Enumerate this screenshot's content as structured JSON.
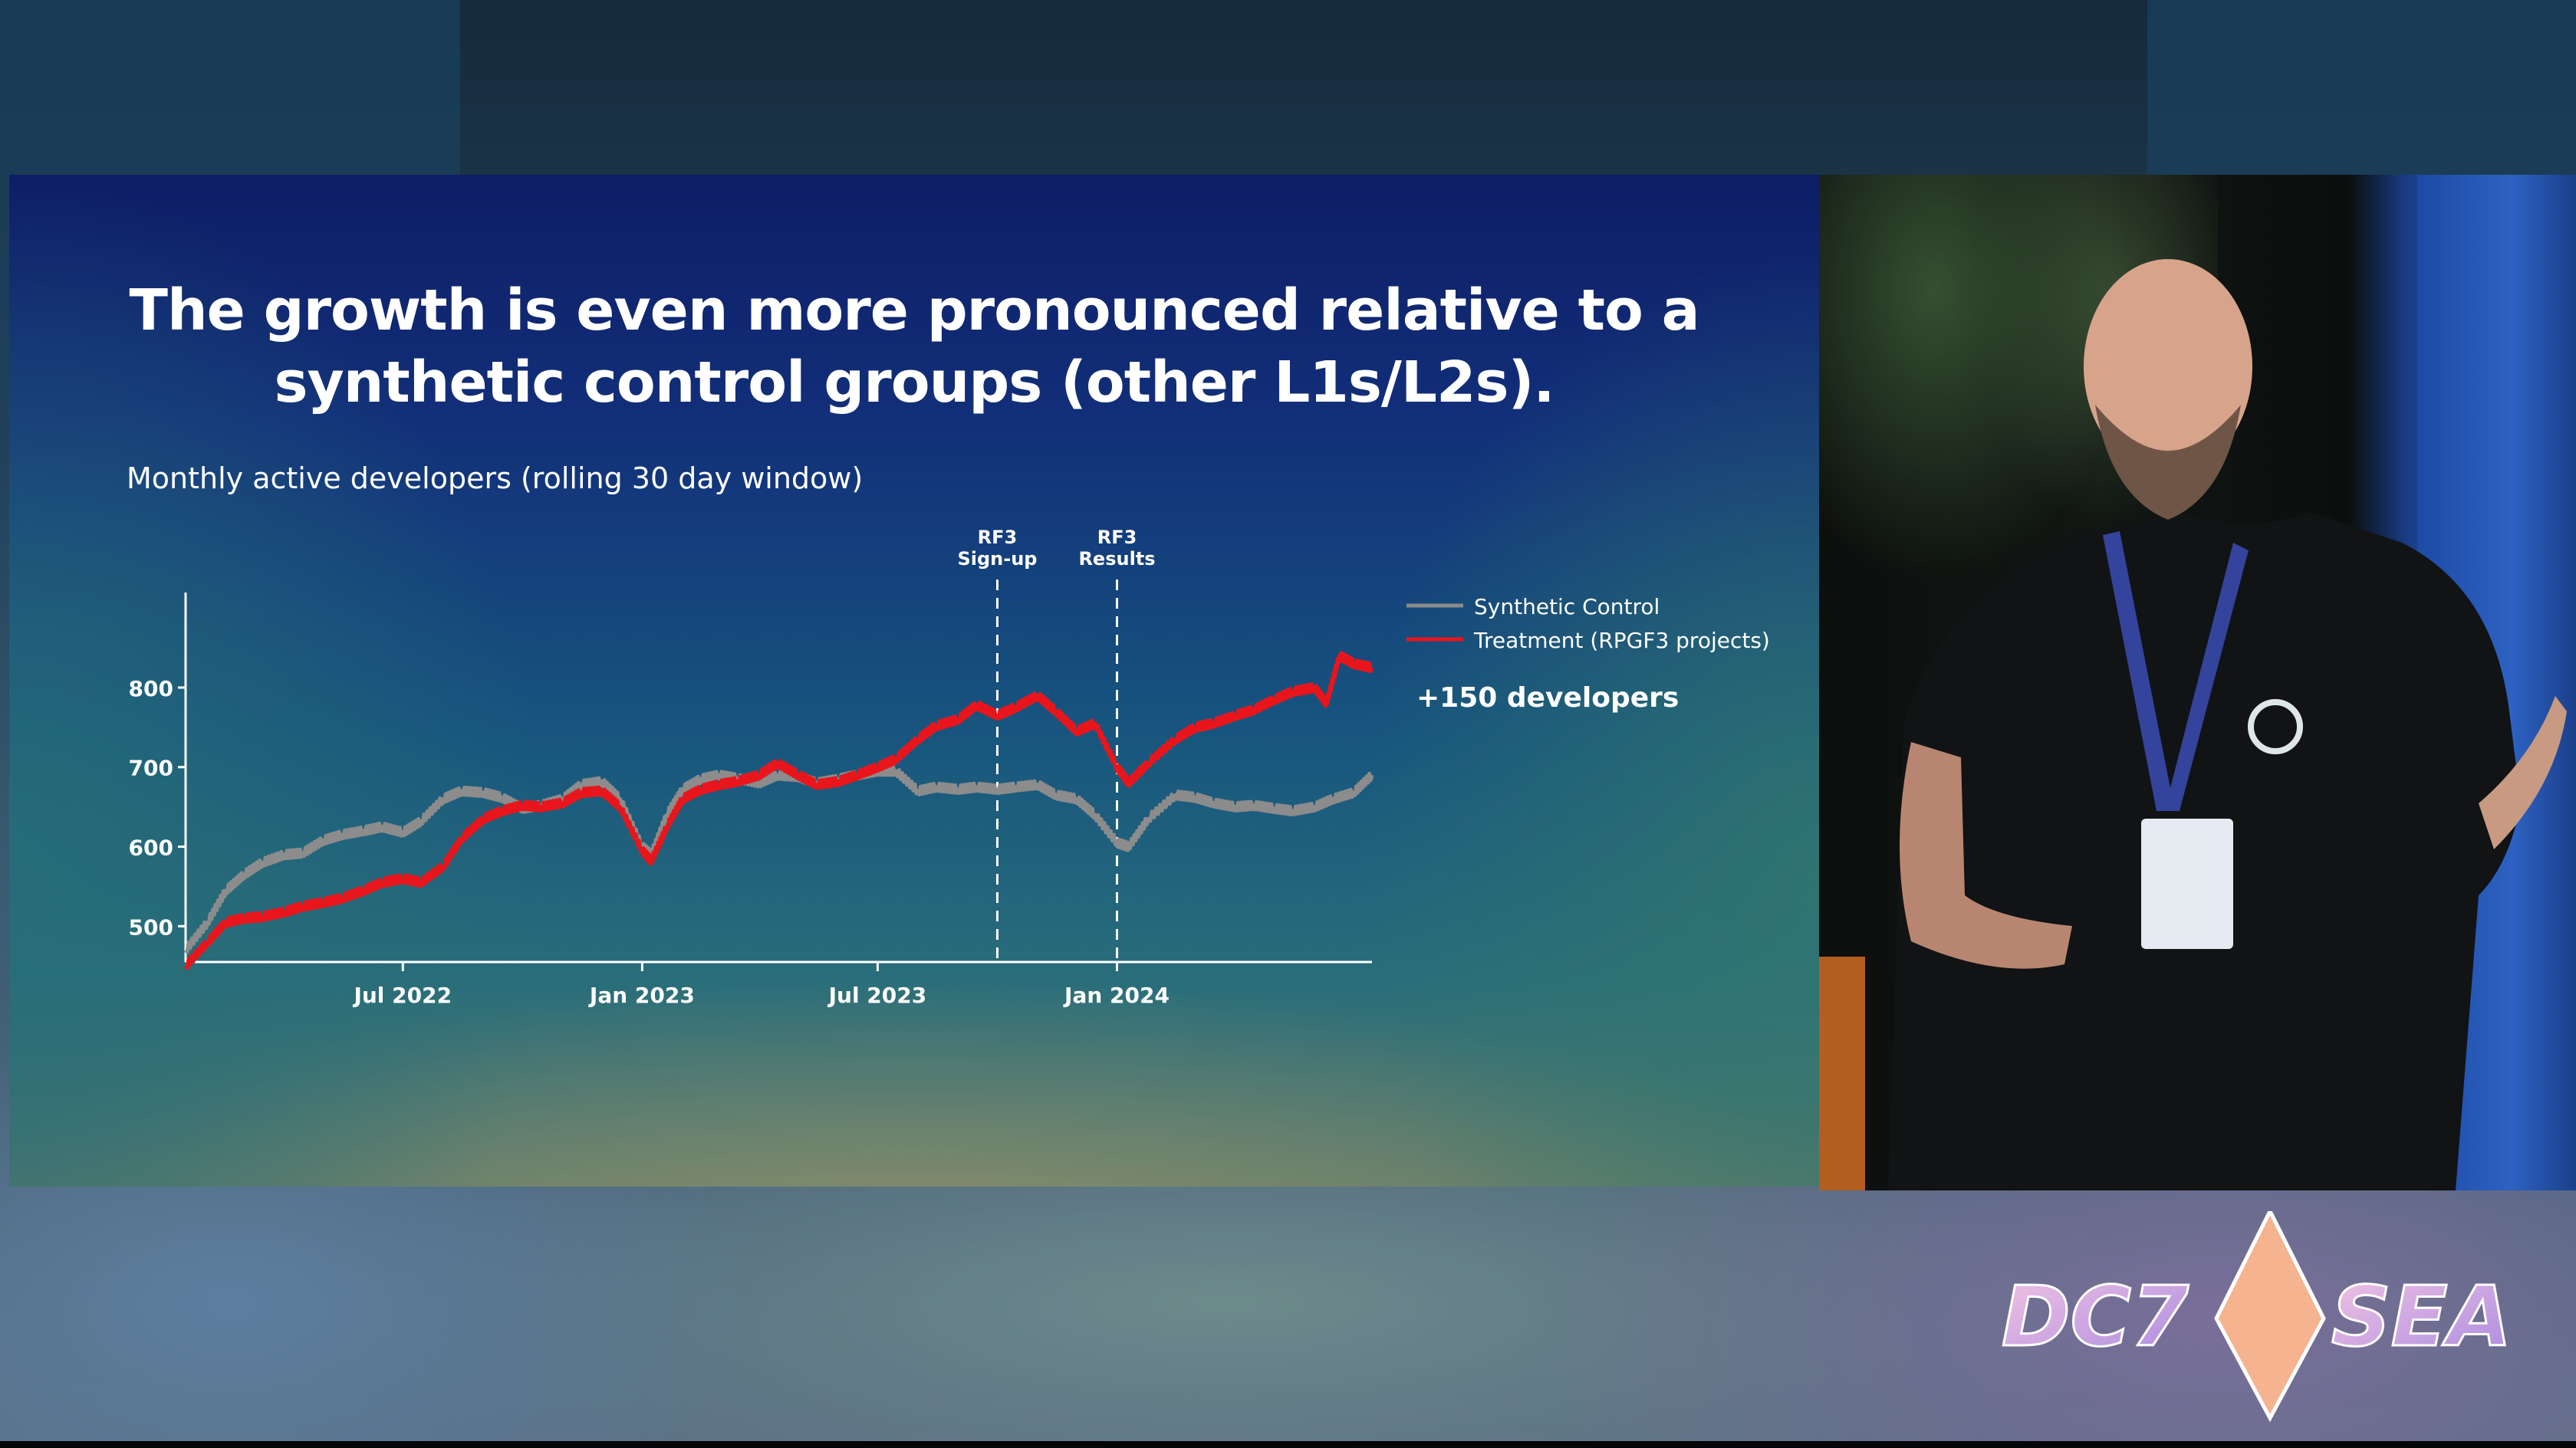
{
  "slide": {
    "title_lines": [
      "The growth is even more pronounced relative to a",
      "synthetic control groups (other L1s/L2s)."
    ],
    "subtitle": "Monthly active developers (rolling 30 day window)",
    "annotation": "+150 developers"
  },
  "conference": {
    "logo_text_left": "DC7",
    "logo_text_right": "SEA"
  },
  "colors": {
    "treatment": "#e8161c",
    "control": "#8c8c8c",
    "axis": "#ffffff"
  },
  "chart_data": {
    "type": "line",
    "title": "Monthly active developers (rolling 30 day window)",
    "xlabel": "",
    "ylabel": "",
    "x_range": [
      "2022-01-15",
      "2024-07-15"
    ],
    "ylim": [
      455,
      905
    ],
    "y_ticks": [
      500,
      600,
      700,
      800
    ],
    "x_ticks": [
      {
        "date": "2022-07-01",
        "label": "Jul 2022"
      },
      {
        "date": "2023-01-01",
        "label": "Jan 2023"
      },
      {
        "date": "2023-07-01",
        "label": "Jul 2023"
      },
      {
        "date": "2024-01-01",
        "label": "Jan 2024"
      }
    ],
    "events": [
      {
        "date": "2023-10-01",
        "label": [
          "RF3",
          "Sign-up"
        ]
      },
      {
        "date": "2024-01-01",
        "label": [
          "RF3",
          "Results"
        ]
      }
    ],
    "grid": false,
    "legend_position": "right",
    "series": [
      {
        "name": "Synthetic Control",
        "color": "#8c8c8c",
        "points": [
          [
            "2022-01-15",
            470
          ],
          [
            "2022-02-01",
            505
          ],
          [
            "2022-02-15",
            545
          ],
          [
            "2022-03-01",
            565
          ],
          [
            "2022-03-15",
            580
          ],
          [
            "2022-04-01",
            590
          ],
          [
            "2022-04-15",
            592
          ],
          [
            "2022-05-01",
            608
          ],
          [
            "2022-05-15",
            615
          ],
          [
            "2022-06-01",
            620
          ],
          [
            "2022-06-15",
            625
          ],
          [
            "2022-07-01",
            618
          ],
          [
            "2022-07-15",
            632
          ],
          [
            "2022-08-01",
            660
          ],
          [
            "2022-08-15",
            670
          ],
          [
            "2022-09-01",
            668
          ],
          [
            "2022-09-15",
            662
          ],
          [
            "2022-10-01",
            648
          ],
          [
            "2022-10-15",
            652
          ],
          [
            "2022-11-01",
            660
          ],
          [
            "2022-11-15",
            678
          ],
          [
            "2022-12-01",
            682
          ],
          [
            "2022-12-15",
            660
          ],
          [
            "2023-01-01",
            600
          ],
          [
            "2023-01-08",
            590
          ],
          [
            "2023-01-20",
            640
          ],
          [
            "2023-02-01",
            672
          ],
          [
            "2023-02-15",
            685
          ],
          [
            "2023-03-01",
            690
          ],
          [
            "2023-03-15",
            686
          ],
          [
            "2023-04-01",
            680
          ],
          [
            "2023-04-15",
            690
          ],
          [
            "2023-05-01",
            688
          ],
          [
            "2023-05-15",
            680
          ],
          [
            "2023-06-01",
            685
          ],
          [
            "2023-06-15",
            690
          ],
          [
            "2023-07-01",
            695
          ],
          [
            "2023-07-15",
            695
          ],
          [
            "2023-08-01",
            670
          ],
          [
            "2023-08-15",
            675
          ],
          [
            "2023-09-01",
            672
          ],
          [
            "2023-09-15",
            675
          ],
          [
            "2023-10-01",
            672
          ],
          [
            "2023-10-15",
            675
          ],
          [
            "2023-11-01",
            678
          ],
          [
            "2023-11-15",
            665
          ],
          [
            "2023-12-01",
            660
          ],
          [
            "2023-12-15",
            640
          ],
          [
            "2024-01-01",
            605
          ],
          [
            "2024-01-10",
            600
          ],
          [
            "2024-01-25",
            635
          ],
          [
            "2024-02-15",
            665
          ],
          [
            "2024-03-01",
            662
          ],
          [
            "2024-03-15",
            655
          ],
          [
            "2024-04-01",
            650
          ],
          [
            "2024-04-15",
            652
          ],
          [
            "2024-05-01",
            648
          ],
          [
            "2024-05-15",
            645
          ],
          [
            "2024-06-01",
            650
          ],
          [
            "2024-06-15",
            660
          ],
          [
            "2024-07-01",
            668
          ],
          [
            "2024-07-15",
            690
          ]
        ]
      },
      {
        "name": "Treatment (RPGF3 projects)",
        "color": "#e8161c",
        "points": [
          [
            "2022-01-15",
            450
          ],
          [
            "2022-02-01",
            480
          ],
          [
            "2022-02-15",
            505
          ],
          [
            "2022-03-01",
            510
          ],
          [
            "2022-03-15",
            512
          ],
          [
            "2022-04-01",
            518
          ],
          [
            "2022-04-15",
            525
          ],
          [
            "2022-05-01",
            530
          ],
          [
            "2022-05-15",
            535
          ],
          [
            "2022-06-01",
            545
          ],
          [
            "2022-06-15",
            555
          ],
          [
            "2022-07-01",
            560
          ],
          [
            "2022-07-15",
            555
          ],
          [
            "2022-08-01",
            575
          ],
          [
            "2022-08-15",
            610
          ],
          [
            "2022-09-01",
            635
          ],
          [
            "2022-09-15",
            645
          ],
          [
            "2022-10-01",
            652
          ],
          [
            "2022-10-15",
            650
          ],
          [
            "2022-11-01",
            655
          ],
          [
            "2022-11-15",
            668
          ],
          [
            "2022-12-01",
            670
          ],
          [
            "2022-12-15",
            650
          ],
          [
            "2023-01-01",
            595
          ],
          [
            "2023-01-08",
            582
          ],
          [
            "2023-01-20",
            625
          ],
          [
            "2023-02-01",
            660
          ],
          [
            "2023-02-15",
            672
          ],
          [
            "2023-03-01",
            678
          ],
          [
            "2023-03-15",
            682
          ],
          [
            "2023-04-01",
            690
          ],
          [
            "2023-04-15",
            705
          ],
          [
            "2023-05-01",
            690
          ],
          [
            "2023-05-15",
            678
          ],
          [
            "2023-06-01",
            682
          ],
          [
            "2023-06-15",
            690
          ],
          [
            "2023-07-01",
            700
          ],
          [
            "2023-07-15",
            710
          ],
          [
            "2023-08-01",
            735
          ],
          [
            "2023-08-15",
            752
          ],
          [
            "2023-09-01",
            760
          ],
          [
            "2023-09-15",
            778
          ],
          [
            "2023-10-01",
            765
          ],
          [
            "2023-10-15",
            775
          ],
          [
            "2023-11-01",
            790
          ],
          [
            "2023-11-15",
            770
          ],
          [
            "2023-12-01",
            745
          ],
          [
            "2023-12-15",
            755
          ],
          [
            "2024-01-01",
            700
          ],
          [
            "2024-01-10",
            680
          ],
          [
            "2024-01-25",
            705
          ],
          [
            "2024-02-15",
            735
          ],
          [
            "2024-03-01",
            750
          ],
          [
            "2024-03-15",
            755
          ],
          [
            "2024-04-01",
            765
          ],
          [
            "2024-04-15",
            772
          ],
          [
            "2024-05-01",
            785
          ],
          [
            "2024-05-15",
            795
          ],
          [
            "2024-06-01",
            800
          ],
          [
            "2024-06-10",
            780
          ],
          [
            "2024-06-20",
            840
          ],
          [
            "2024-07-01",
            830
          ],
          [
            "2024-07-15",
            825
          ]
        ]
      }
    ]
  }
}
